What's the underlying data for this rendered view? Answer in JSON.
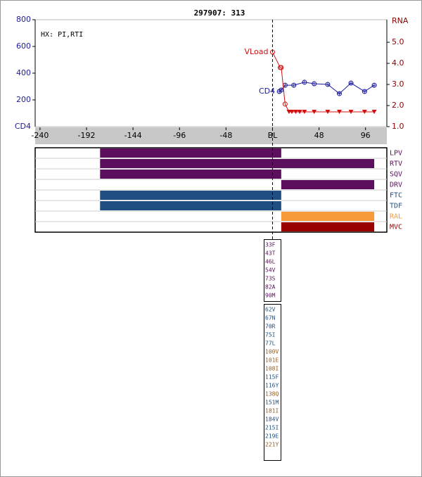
{
  "title": "297907: 313",
  "chart_data": {
    "type": "line",
    "annotation": "HX: PI,RTI",
    "xlim": [
      -245,
      118
    ],
    "xticks": [
      -240,
      -192,
      -144,
      -96,
      -48,
      {
        "value": 0,
        "label": "BL"
      },
      48,
      96
    ],
    "ylim": [
      0,
      800
    ],
    "yticks": [
      200,
      400,
      600,
      800
    ],
    "y_label": "CD4",
    "y2lim": [
      1,
      6.07
    ],
    "y2ticks": [
      {
        "value": 1,
        "label": "1.0"
      },
      {
        "value": 2,
        "label": "2.0"
      },
      {
        "value": 3,
        "label": "3.0"
      },
      {
        "value": 4,
        "label": "4.0"
      },
      {
        "value": 5,
        "label": "5.0"
      }
    ],
    "y2_label": "RNA",
    "series": [
      {
        "name": "CD4",
        "color": "#1c1c9c",
        "marker": "circle-cross",
        "x": [
          7,
          9,
          13,
          22,
          33,
          43,
          57,
          69,
          81,
          95,
          105
        ],
        "values": [
          263,
          274,
          310,
          310,
          332,
          321,
          316,
          247,
          326,
          263,
          310
        ]
      },
      {
        "name": "VLoad",
        "color": "#d01010",
        "axis": "y2",
        "x": [
          0,
          8,
          9,
          13,
          17,
          20,
          24,
          28,
          33,
          43,
          57,
          69,
          81,
          95,
          105
        ],
        "values": [
          4.53,
          3.8,
          3.8,
          2.07,
          1.7,
          1.7,
          1.7,
          1.7,
          1.7,
          1.7,
          1.7,
          1.7,
          1.7,
          1.7,
          1.7
        ],
        "markers": [
          "circle",
          "circle",
          "circle",
          "circle",
          "triangle",
          "triangle",
          "triangle",
          "triangle",
          "triangle",
          "triangle",
          "triangle",
          "triangle",
          "triangle",
          "triangle",
          "triangle"
        ]
      }
    ]
  },
  "treatments": [
    {
      "name": "LPV",
      "color": "#5c0f5c",
      "label_color": "#5c0f5c",
      "start": -178,
      "end": 9
    },
    {
      "name": "RTV",
      "color": "#5c0f5c",
      "label_color": "#5c0f5c",
      "start": -178,
      "end": 105
    },
    {
      "name": "SQV",
      "color": "#5c0f5c",
      "label_color": "#5c0f5c",
      "start": -178,
      "end": 9
    },
    {
      "name": "DRV",
      "color": "#5c0f5c",
      "label_color": "#5c0f5c",
      "start": 9,
      "end": 105
    },
    {
      "name": "FTC",
      "color": "#1f4e82",
      "label_color": "#1f4e82",
      "start": -178,
      "end": 9
    },
    {
      "name": "TDF",
      "color": "#1f4e82",
      "label_color": "#1f4e82",
      "start": -178,
      "end": 9
    },
    {
      "name": "RAL",
      "color": "#f79a3c",
      "label_color": "#f79a3c",
      "start": 9,
      "end": 105
    },
    {
      "name": "MVC",
      "color": "#990000",
      "label_color": "#990000",
      "start": 9,
      "end": 105
    }
  ],
  "mutations": [
    {
      "items": [
        "33F",
        "43T",
        "46L",
        "54V",
        "73S",
        "82A",
        "90M"
      ],
      "colors": [
        "#5c0f5c",
        "#5c0f5c",
        "#5c0f5c",
        "#5c0f5c",
        "#5c0f5c",
        "#5c0f5c",
        "#5c0f5c"
      ]
    },
    {
      "items": [
        "62V",
        "67N",
        "70R",
        "75I",
        "77L",
        "100V",
        "101E",
        "108I",
        "115F",
        "116Y",
        "138Q",
        "151M",
        "181I",
        "184V",
        "215I",
        "219E",
        "221Y"
      ],
      "colors": [
        "#1f4e82",
        "#1f4e82",
        "#1f4e82",
        "#1f4e82",
        "#1f4e82",
        "#9a5a1a",
        "#9a5a1a",
        "#9a5a1a",
        "#1f4e82",
        "#1f4e82",
        "#9a5a1a",
        "#1f4e82",
        "#9a5a1a",
        "#1f4e82",
        "#1f4e82",
        "#1f4e82",
        "#9a5a1a"
      ]
    }
  ]
}
